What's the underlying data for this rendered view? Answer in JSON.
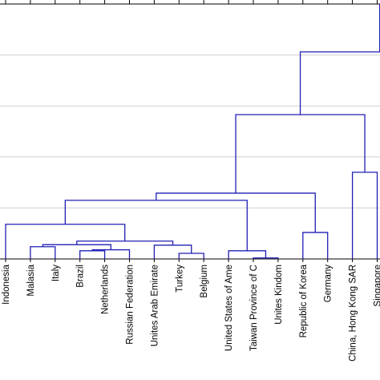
{
  "chart_data": {
    "type": "dendrogram",
    "labels": [
      "Indonesia",
      "Malasia",
      "Italy",
      "Brazil",
      "Netherlands",
      "Russian Federation",
      "Unites  Arab Emirate",
      "Turkey",
      "Belgium",
      "United States of Ame",
      "Taiwan Province of C",
      "Unites Kindom",
      "Republic of Korea",
      "Germany",
      "China, Hong Kong SAR",
      "Singapore"
    ],
    "merges": [
      [
        1,
        2,
        0.24
      ],
      [
        3,
        4,
        0.16
      ],
      [
        17,
        5,
        0.18
      ],
      [
        7,
        8,
        0.11
      ],
      [
        6,
        19,
        0.27
      ],
      [
        16,
        18,
        0.28
      ],
      [
        21,
        20,
        0.35
      ],
      [
        0,
        22,
        0.68
      ],
      [
        10,
        11,
        0.02
      ],
      [
        9,
        24,
        0.16
      ],
      [
        23,
        25,
        1.15
      ],
      [
        12,
        13,
        0.52
      ],
      [
        26,
        27,
        1.29
      ],
      [
        14,
        15,
        1.7
      ],
      [
        28,
        29,
        2.83
      ],
      [
        30,
        null,
        4.06
      ]
    ],
    "color": "#1f1fb4",
    "ylim": [
      0,
      5
    ],
    "yticks": [
      1,
      2,
      3,
      4
    ],
    "grid": true
  }
}
